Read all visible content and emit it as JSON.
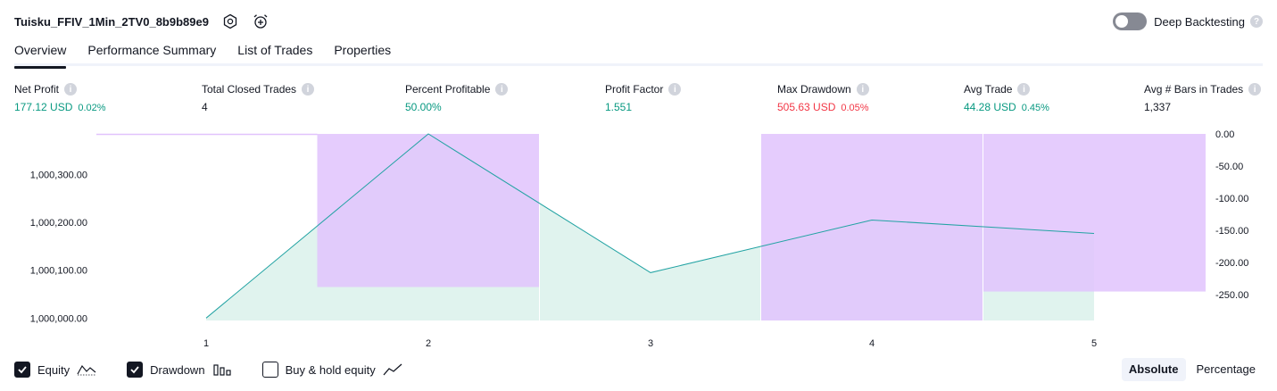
{
  "header": {
    "strategy_name": "Tuisku_FFIV_1Min_2TV0_8b9b89e9",
    "icons": [
      "settings-icon",
      "alarm-add-icon"
    ],
    "deep_backtesting_label": "Deep Backtesting",
    "deep_backtesting_on": false
  },
  "tabs": [
    {
      "label": "Overview",
      "active": true
    },
    {
      "label": "Performance Summary",
      "active": false
    },
    {
      "label": "List of Trades",
      "active": false
    },
    {
      "label": "Properties",
      "active": false
    }
  ],
  "stats": {
    "net_profit": {
      "label": "Net Profit",
      "value": "177.12 USD",
      "pct": "0.02%"
    },
    "total_closed_trades": {
      "label": "Total Closed Trades",
      "value": "4"
    },
    "percent_profitable": {
      "label": "Percent Profitable",
      "value": "50.00%"
    },
    "profit_factor": {
      "label": "Profit Factor",
      "value": "1.551"
    },
    "max_drawdown": {
      "label": "Max Drawdown",
      "value": "505.63 USD",
      "pct": "0.05%"
    },
    "avg_trade": {
      "label": "Avg Trade",
      "value": "44.28 USD",
      "pct": "0.45%"
    },
    "avg_bars": {
      "label": "Avg # Bars in Trades",
      "value": "1,337"
    }
  },
  "colors": {
    "positive": "#089981",
    "negative": "#f23645",
    "equity_line": "#22a3a3",
    "equity_fill": "#e0f3ee",
    "drawdown_fill": "#e1c3fd"
  },
  "chart_data": {
    "type": "area",
    "x": [
      1,
      2,
      3,
      4,
      5
    ],
    "series": [
      {
        "name": "Equity",
        "values": [
          1000000,
          1000385,
          1000095,
          1000205,
          1000177
        ]
      },
      {
        "name": "Drawdown",
        "values": [
          0,
          -238,
          0,
          -290,
          -245
        ]
      }
    ],
    "left_ticks": [
      "1,000,000.00",
      "1,000,100.00",
      "1,000,200.00",
      "1,000,300.00"
    ],
    "left_tick_values": [
      1000000,
      1000100,
      1000200,
      1000300
    ],
    "right_ticks": [
      "0.00",
      "-50.00",
      "-100.00",
      "-150.00",
      "-200.00",
      "-250.00"
    ],
    "right_tick_values": [
      0,
      -50,
      -100,
      -150,
      -200,
      -250
    ],
    "x_ticks": [
      "1",
      "2",
      "3",
      "4",
      "5"
    ],
    "ylim_left": [
      999995,
      1000385
    ],
    "ylim_right": [
      -290,
      0
    ]
  },
  "legend": [
    {
      "label": "Equity",
      "checked": true,
      "icon": "equity-line-icon"
    },
    {
      "label": "Drawdown",
      "checked": true,
      "icon": "drawdown-bars-icon"
    },
    {
      "label": "Buy & hold equity",
      "checked": false,
      "icon": "buy-hold-line-icon"
    }
  ],
  "mode": {
    "absolute_label": "Absolute",
    "percentage_label": "Percentage",
    "active": "absolute"
  }
}
